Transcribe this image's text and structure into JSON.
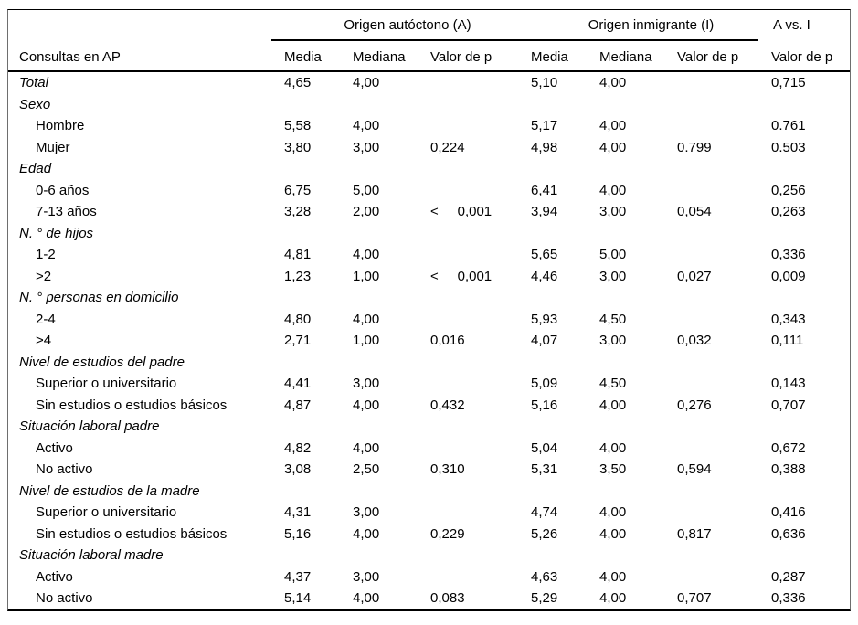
{
  "table": {
    "row_label_header": "Consultas en AP",
    "group_headers": [
      {
        "label": "Origen autóctono (A)"
      },
      {
        "label": "Origen inmigrante (I)"
      },
      {
        "label": "A vs. I"
      }
    ],
    "column_headers": [
      "Media",
      "Mediana",
      "Valor de p",
      "Media",
      "Mediana",
      "Valor de p",
      "Valor de p"
    ],
    "rows": [
      {
        "label": "Total",
        "italic": true,
        "indent": false,
        "values": [
          "4,65",
          "4,00",
          "",
          "5,10",
          "4,00",
          "",
          "0,715"
        ]
      },
      {
        "label": "Sexo",
        "italic": true,
        "indent": false
      },
      {
        "label": "Hombre",
        "italic": false,
        "indent": true,
        "values": [
          "5,58",
          "4,00",
          "",
          "5,17",
          "4,00",
          "",
          "0.761"
        ]
      },
      {
        "label": "Mujer",
        "italic": false,
        "indent": true,
        "values": [
          "3,80",
          "3,00",
          "0,224",
          "4,98",
          "4,00",
          "0.799",
          "0.503"
        ]
      },
      {
        "label": "Edad",
        "italic": true,
        "indent": false
      },
      {
        "label": "0-6 años",
        "italic": false,
        "indent": true,
        "values": [
          "6,75",
          "5,00",
          "",
          "6,41",
          "4,00",
          "",
          "0,256"
        ]
      },
      {
        "label": "7-13 años",
        "italic": false,
        "indent": true,
        "values": [
          "3,28",
          "2,00",
          "<     0,001",
          "3,94",
          "3,00",
          "0,054",
          "0,263"
        ]
      },
      {
        "label": "N. ° de hijos",
        "italic": true,
        "indent": false
      },
      {
        "label": "1-2",
        "italic": false,
        "indent": true,
        "values": [
          "4,81",
          "4,00",
          "",
          "5,65",
          "5,00",
          "",
          "0,336"
        ]
      },
      {
        "label": ">2",
        "italic": false,
        "indent": true,
        "values": [
          "1,23",
          "1,00",
          "<     0,001",
          "4,46",
          "3,00",
          "0,027",
          "0,009"
        ]
      },
      {
        "label": "N. ° personas en domicilio",
        "italic": true,
        "indent": false
      },
      {
        "label": "2-4",
        "italic": false,
        "indent": true,
        "values": [
          "4,80",
          "4,00",
          "",
          "5,93",
          "4,50",
          "",
          "0,343"
        ]
      },
      {
        "label": ">4",
        "italic": false,
        "indent": true,
        "values": [
          "2,71",
          "1,00",
          "0,016",
          "4,07",
          "3,00",
          "0,032",
          "0,111"
        ]
      },
      {
        "label": "Nivel de estudios del padre",
        "italic": true,
        "indent": false
      },
      {
        "label": "Superior o universitario",
        "italic": false,
        "indent": true,
        "values": [
          "4,41",
          "3,00",
          "",
          "5,09",
          "4,50",
          "",
          "0,143"
        ]
      },
      {
        "label": "Sin estudios o estudios básicos",
        "italic": false,
        "indent": true,
        "values": [
          "4,87",
          "4,00",
          "0,432",
          "5,16",
          "4,00",
          "0,276",
          "0,707"
        ]
      },
      {
        "label": "Situación laboral padre",
        "italic": true,
        "indent": false
      },
      {
        "label": "Activo",
        "italic": false,
        "indent": true,
        "values": [
          "4,82",
          "4,00",
          "",
          "5,04",
          "4,00",
          "",
          "0,672"
        ]
      },
      {
        "label": "No activo",
        "italic": false,
        "indent": true,
        "values": [
          "3,08",
          "2,50",
          "0,310",
          "5,31",
          "3,50",
          "0,594",
          "0,388"
        ]
      },
      {
        "label": "Nivel de estudios de la madre",
        "italic": true,
        "indent": false
      },
      {
        "label": "Superior o universitario",
        "italic": false,
        "indent": true,
        "values": [
          "4,31",
          "3,00",
          "",
          "4,74",
          "4,00",
          "",
          "0,416"
        ]
      },
      {
        "label": "Sin estudios o estudios básicos",
        "italic": false,
        "indent": true,
        "values": [
          "5,16",
          "4,00",
          "0,229",
          "5,26",
          "4,00",
          "0,817",
          "0,636"
        ]
      },
      {
        "label": "Situación laboral madre",
        "italic": true,
        "indent": false
      },
      {
        "label": "Activo",
        "italic": false,
        "indent": true,
        "values": [
          "4,37",
          "3,00",
          "",
          "4,63",
          "4,00",
          "",
          "0,287"
        ]
      },
      {
        "label": "No activo",
        "italic": false,
        "indent": true,
        "values": [
          "5,14",
          "4,00",
          "0,083",
          "5,29",
          "4,00",
          "0,707",
          "0,336"
        ]
      }
    ],
    "colors": {
      "rule": "#000000",
      "side_border": "#6e6e6e",
      "text": "#000000",
      "background": "#ffffff"
    }
  }
}
